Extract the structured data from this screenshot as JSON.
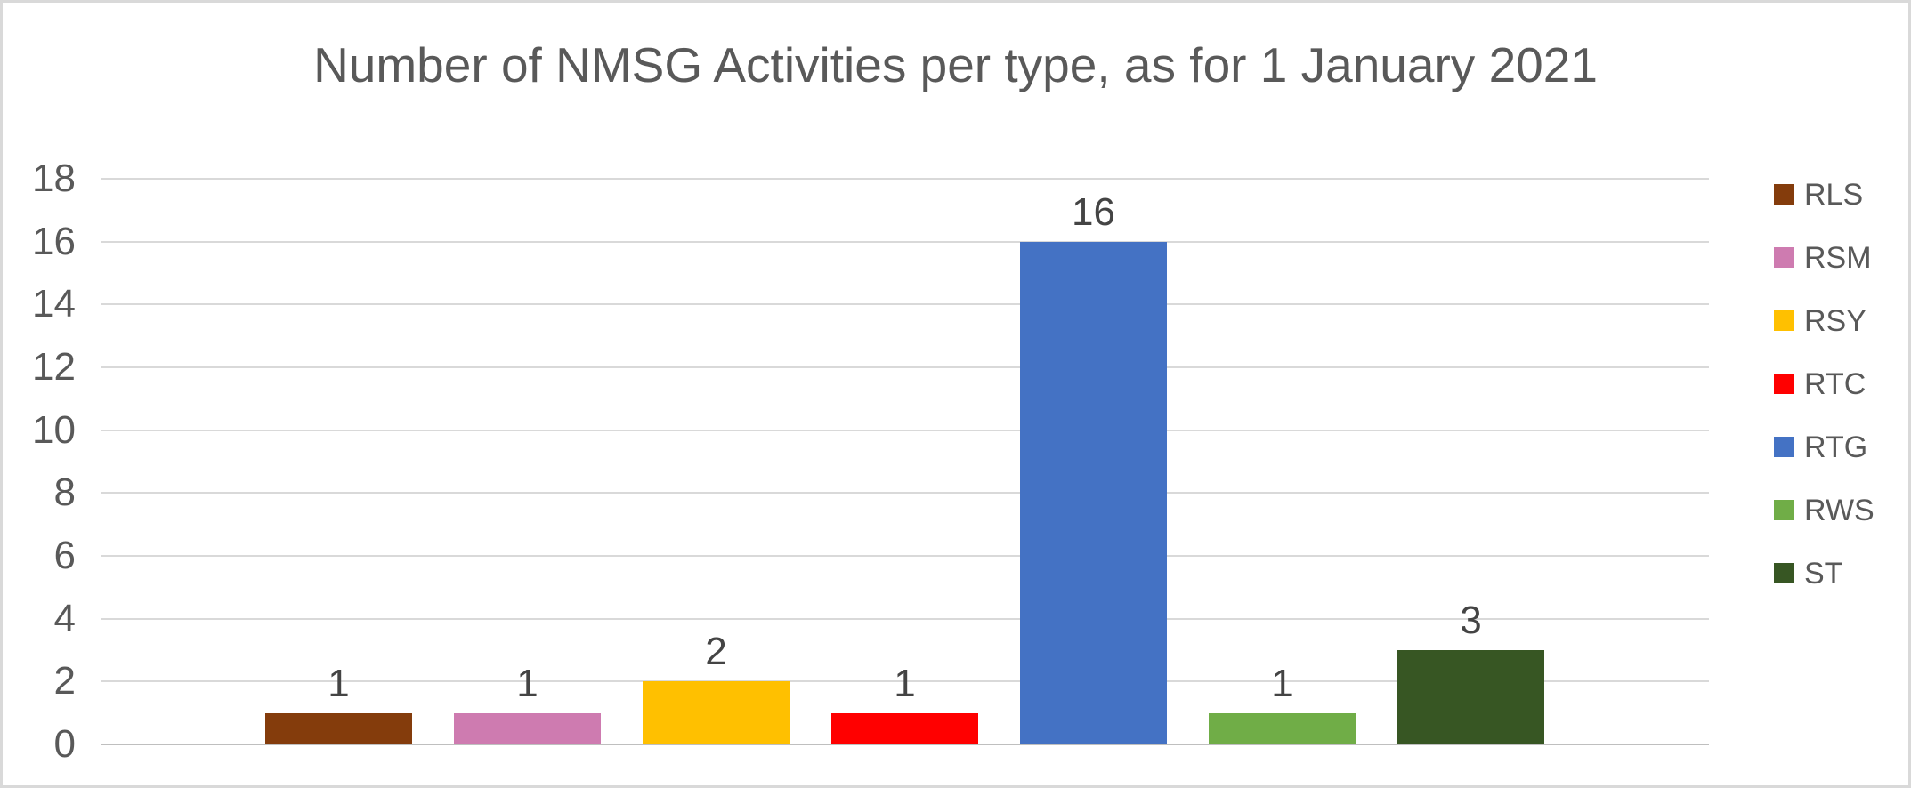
{
  "chart_data": {
    "type": "bar",
    "title": "Number of NMSG Activities per type, as for 1 January 2021",
    "categories": [
      "RLS",
      "RSM",
      "RSY",
      "RTC",
      "RTG",
      "RWS",
      "ST"
    ],
    "values": [
      1,
      1,
      2,
      1,
      16,
      1,
      3
    ],
    "data_labels": [
      "1",
      "1",
      "2",
      "1",
      "16",
      "1",
      "3"
    ],
    "colors": [
      "#843C0C",
      "#CE7BB0",
      "#FFC000",
      "#FF0000",
      "#4472C4",
      "#70AD47",
      "#375623"
    ],
    "legend": [
      "RLS",
      "RSM",
      "RSY",
      "RTC",
      "RTG",
      "RWS",
      "ST"
    ],
    "legend_position": "right",
    "xlabel": "",
    "ylabel": "",
    "ylim": [
      0,
      18
    ],
    "yticks": [
      0,
      2,
      4,
      6,
      8,
      10,
      12,
      14,
      16,
      18
    ],
    "ytick_labels": [
      "0",
      "2",
      "4",
      "6",
      "8",
      "10",
      "12",
      "14",
      "16",
      "18"
    ],
    "grid": true,
    "styles": {
      "title_color": "#595959",
      "axis_label_color": "#595959",
      "data_label_color": "#444444",
      "legend_text_color": "#595959",
      "gridline_color": "#D9D9D9",
      "axis_line_color": "#BFBFBF",
      "frame_border_color": "#D9D9D9"
    }
  }
}
